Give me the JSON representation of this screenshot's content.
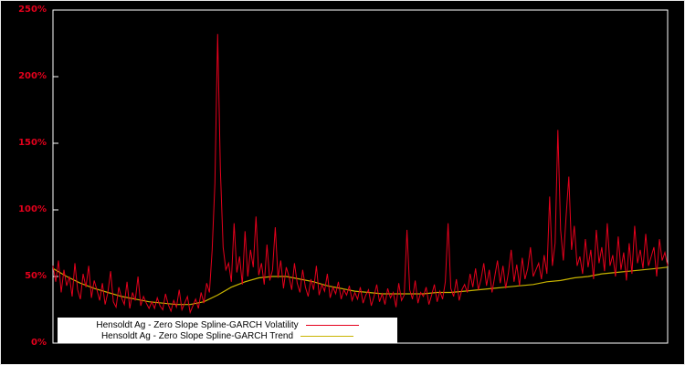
{
  "chart_data": {
    "type": "line",
    "title": "",
    "xlabel": "",
    "ylabel": "",
    "grid": false,
    "background_color": "#000000",
    "axis_color": "#ffffff",
    "tick_label_color": "#e4001c",
    "legend_position": "bottom-left",
    "ylim": [
      0,
      250
    ],
    "ytick_values": [
      0,
      50,
      100,
      150,
      200,
      250
    ],
    "yticks": [
      "0%",
      "50%",
      "100%",
      "150%",
      "200%",
      "250%"
    ],
    "x_range": [
      0,
      224
    ],
    "series": [
      {
        "name": "Hensoldt Ag - Zero Slope Spline-GARCH Volatility",
        "color": "#e4001c",
        "unit": "%",
        "values": [
          58,
          46,
          62,
          38,
          55,
          43,
          50,
          35,
          60,
          40,
          33,
          52,
          42,
          58,
          34,
          47,
          40,
          32,
          45,
          29,
          38,
          54,
          31,
          27,
          42,
          34,
          29,
          46,
          26,
          38,
          32,
          50,
          28,
          35,
          30,
          26,
          31,
          26,
          34,
          28,
          25,
          37,
          29,
          24,
          32,
          27,
          40,
          25,
          30,
          35,
          23,
          28,
          33,
          26,
          38,
          30,
          45,
          38,
          70,
          120,
          232,
          130,
          72,
          55,
          60,
          46,
          90,
          53,
          65,
          44,
          84,
          50,
          70,
          57,
          95,
          51,
          60,
          44,
          74,
          47,
          55,
          87,
          49,
          62,
          41,
          57,
          50,
          40,
          60,
          45,
          38,
          55,
          42,
          35,
          48,
          40,
          58,
          36,
          44,
          39,
          52,
          34,
          42,
          37,
          46,
          33,
          40,
          36,
          43,
          32,
          38,
          33,
          42,
          30,
          36,
          40,
          28,
          35,
          44,
          31,
          37,
          29,
          41,
          34,
          38,
          27,
          45,
          32,
          36,
          85,
          40,
          33,
          47,
          30,
          38,
          35,
          42,
          29,
          36,
          44,
          31,
          39,
          33,
          46,
          90,
          41,
          35,
          48,
          32,
          40,
          44,
          38,
          52,
          42,
          56,
          40,
          48,
          60,
          43,
          55,
          38,
          50,
          62,
          45,
          58,
          41,
          53,
          70,
          46,
          59,
          43,
          64,
          48,
          56,
          72,
          50,
          55,
          60,
          48,
          66,
          52,
          110,
          58,
          75,
          160,
          85,
          62,
          95,
          125,
          70,
          88,
          58,
          65,
          52,
          78,
          57,
          70,
          48,
          85,
          60,
          72,
          54,
          90,
          58,
          66,
          50,
          80,
          55,
          68,
          47,
          75,
          52,
          88,
          60,
          70,
          56,
          82,
          58,
          65,
          72,
          50,
          78,
          62,
          68,
          58
        ]
      },
      {
        "name": "Hensoldt Ag - Zero Slope Spline-GARCH Trend",
        "color": "#c8b400",
        "unit": "%",
        "points": [
          [
            0,
            56
          ],
          [
            5,
            50
          ],
          [
            10,
            45
          ],
          [
            15,
            41
          ],
          [
            20,
            38
          ],
          [
            25,
            35
          ],
          [
            30,
            33
          ],
          [
            35,
            31
          ],
          [
            40,
            30
          ],
          [
            45,
            29
          ],
          [
            50,
            29
          ],
          [
            55,
            31
          ],
          [
            60,
            36
          ],
          [
            65,
            42
          ],
          [
            70,
            46
          ],
          [
            75,
            49
          ],
          [
            80,
            50
          ],
          [
            85,
            50
          ],
          [
            90,
            48
          ],
          [
            95,
            46
          ],
          [
            100,
            43
          ],
          [
            105,
            41
          ],
          [
            110,
            39
          ],
          [
            115,
            38
          ],
          [
            120,
            37
          ],
          [
            125,
            37
          ],
          [
            130,
            37
          ],
          [
            135,
            37
          ],
          [
            140,
            38
          ],
          [
            145,
            38
          ],
          [
            150,
            39
          ],
          [
            155,
            40
          ],
          [
            160,
            41
          ],
          [
            165,
            42
          ],
          [
            170,
            43
          ],
          [
            175,
            44
          ],
          [
            180,
            46
          ],
          [
            185,
            47
          ],
          [
            190,
            49
          ],
          [
            195,
            50
          ],
          [
            200,
            52
          ],
          [
            205,
            53
          ],
          [
            210,
            54
          ],
          [
            215,
            55
          ],
          [
            220,
            56
          ],
          [
            224,
            57
          ]
        ]
      }
    ]
  }
}
